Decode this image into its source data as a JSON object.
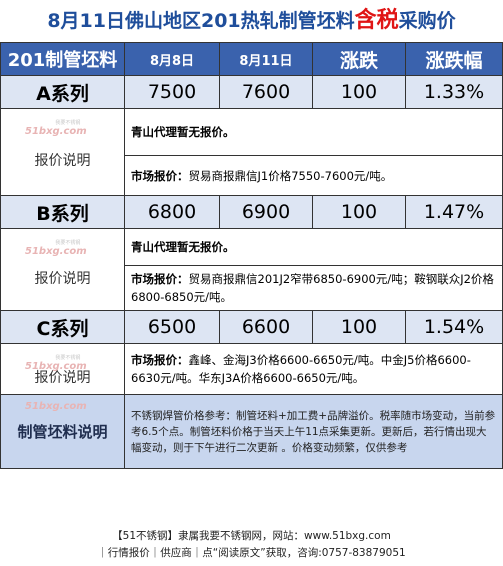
{
  "title": {
    "prefix": "8月11日佛山地区201热轧制管坯料",
    "highlight": "含税",
    "suffix": "采购价"
  },
  "header": {
    "product": "201制管坯料",
    "date1": "8月8日",
    "date2": "8月11日",
    "change": "涨跌",
    "change_pct": "涨跌幅"
  },
  "rows": [
    {
      "name": "A系列",
      "price1": "7500",
      "price2": "7600",
      "change": "100",
      "pct": "1.33%",
      "note_label": "报价说明",
      "note1": "青山代理暂无报价。",
      "note2_label": "市场报价：",
      "note2": "贸易商报鼎信J1价格7550-7600元/吨。"
    },
    {
      "name": "B系列",
      "price1": "6800",
      "price2": "6900",
      "change": "100",
      "pct": "1.47%",
      "note_label": "报价说明",
      "note1": "青山代理暂无报价。",
      "note2_label": "市场报价：",
      "note2": "贸易商报鼎信201J2窄带6850-6900元/吨；鞍钢联众J2价格6800-6850元/吨。"
    },
    {
      "name": "C系列",
      "price1": "6500",
      "price2": "6600",
      "change": "100",
      "pct": "1.54%",
      "note_label": "报价说明",
      "note2_label": "市场报价：",
      "note2": "鑫峰、金海J3价格6600-6650元/吨。中金J5价格6600-6630元/吨。华东J3A价格6600-6650元/吨。"
    }
  ],
  "watermark": {
    "brand": "51bxg.com",
    "small": "我要不锈钢"
  },
  "footer": {
    "label": "制管坯料说明",
    "text": "不锈钢焊管价格参考：制管坯料+加工费+品牌溢价。税率随市场变动，当前参考6.5个点。制管坯料价格于当天上午11点采集更新。更新后，若行情出现大幅变动，则于下午进行二次更新 。价格变动频繁，仅供参考"
  },
  "bottom": {
    "line1": "【51不锈钢】隶属我要不锈钢网，网站：www.51bxg.com",
    "line2": "｜行情报价｜供应商｜点“阅读原文”获取，咨询:0757-83879051"
  }
}
